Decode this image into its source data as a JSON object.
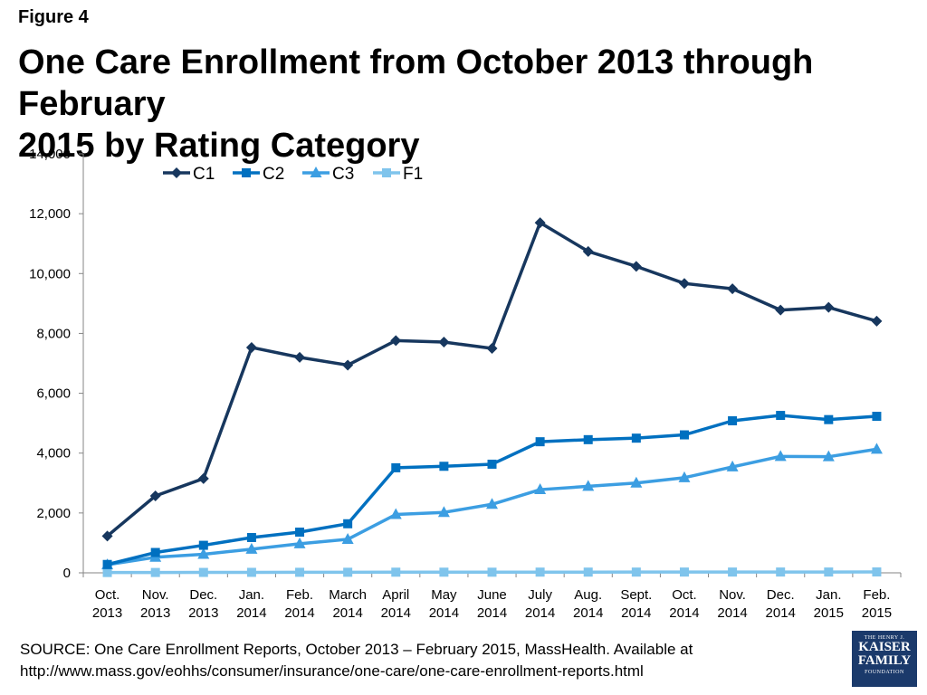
{
  "figure_label": "Figure 4",
  "title_line1": "One Care Enrollment from October 2013 through February",
  "title_line2": "2015 by Rating Category",
  "source_line1": "SOURCE: One Care Enrollment Reports, October 2013 – February 2015, MassHealth. Available at",
  "source_line2": "http://www.mass.gov/eohhs/consumer/insurance/one-care/one-care-enrollment-reports.html",
  "logo": {
    "top": "THE HENRY J.",
    "line1": "KAISER",
    "line2": "FAMILY",
    "bottom": "FOUNDATION"
  },
  "chart_data": {
    "type": "line",
    "title": "",
    "xlabel": "",
    "ylabel": "",
    "ylim": [
      0,
      14000
    ],
    "yticks": [
      0,
      2000,
      4000,
      6000,
      8000,
      10000,
      12000,
      14000
    ],
    "ytick_labels": [
      "0",
      "2,000",
      "4,000",
      "6,000",
      "8,000",
      "10,000",
      "12,000",
      "14,000"
    ],
    "grid": false,
    "legend_position": "top-left",
    "categories": [
      [
        "Oct.",
        "2013"
      ],
      [
        "Nov.",
        "2013"
      ],
      [
        "Dec.",
        "2013"
      ],
      [
        "Jan.",
        "2014"
      ],
      [
        "Feb.",
        "2014"
      ],
      [
        "March",
        "2014"
      ],
      [
        "April",
        "2014"
      ],
      [
        "May",
        "2014"
      ],
      [
        "June",
        "2014"
      ],
      [
        "July",
        "2014"
      ],
      [
        "Aug.",
        "2014"
      ],
      [
        "Sept.",
        "2014"
      ],
      [
        "Oct.",
        "2014"
      ],
      [
        "Nov.",
        "2014"
      ],
      [
        "Dec.",
        "2014"
      ],
      [
        "Jan.",
        "2015"
      ],
      [
        "Feb.",
        "2015"
      ]
    ],
    "series": [
      {
        "name": "C1",
        "color": "#17375e",
        "marker": "diamond",
        "values": [
          1230,
          2570,
          3150,
          7530,
          7200,
          6940,
          7760,
          7710,
          7500,
          11700,
          10740,
          10240,
          9670,
          9490,
          8780,
          8870,
          8410
        ]
      },
      {
        "name": "C2",
        "color": "#0070c0",
        "marker": "square",
        "values": [
          280,
          680,
          920,
          1180,
          1360,
          1640,
          3510,
          3560,
          3630,
          4380,
          4450,
          4500,
          4610,
          5080,
          5260,
          5120,
          5230
        ]
      },
      {
        "name": "C3",
        "color": "#3c9ee2",
        "marker": "triangle",
        "values": [
          270,
          520,
          620,
          790,
          970,
          1120,
          1950,
          2020,
          2290,
          2780,
          2890,
          3000,
          3180,
          3540,
          3890,
          3880,
          4130
        ]
      },
      {
        "name": "F1",
        "color": "#7fc4ec",
        "marker": "square",
        "values": [
          10,
          12,
          14,
          16,
          18,
          19,
          22,
          22,
          21,
          24,
          24,
          25,
          26,
          26,
          27,
          27,
          30
        ]
      }
    ]
  }
}
